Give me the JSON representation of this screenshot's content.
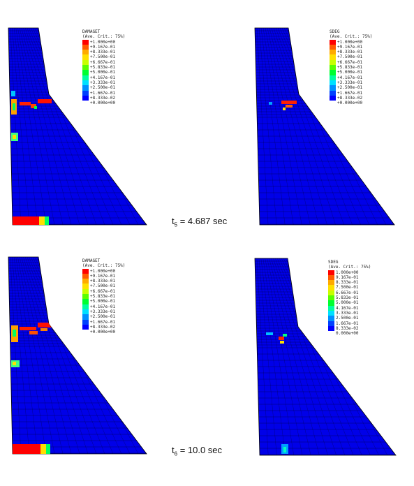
{
  "palette": [
    "#ff0000",
    "#ff5a00",
    "#ffaa00",
    "#ffe000",
    "#c8ff00",
    "#5aff00",
    "#00ff30",
    "#00ffa0",
    "#00e0ff",
    "#0090ff",
    "#0040ff",
    "#0000ff"
  ],
  "mesh_fill": "#0000e8",
  "panels": [
    {
      "var": "DAMAGET",
      "sub": "(Ave. Crit.: 75%)",
      "values": [
        "+1.000e+00",
        "+9.167e-01",
        "+8.333e-01",
        "+7.500e-01",
        "+6.667e-01",
        "+5.833e-01",
        "+5.000e-01",
        "+4.167e-01",
        "+3.333e-01",
        "+2.500e-01",
        "+1.667e-01",
        "+8.333e-02",
        "+0.000e+00"
      ]
    },
    {
      "var": "SDEG",
      "sub": "(Ave. Crit.: 75%)",
      "values": [
        "+1.000e+00",
        "+9.167e-01",
        "+8.333e-01",
        "+7.500e-01",
        "+6.667e-01",
        "+5.833e-01",
        "+5.000e-01",
        "+4.167e-01",
        "+3.333e-01",
        "+2.500e-01",
        "+1.667e-01",
        "+8.333e-02",
        "+0.000e+00"
      ]
    },
    {
      "var": "DAMAGET",
      "sub": "(Ave. Crit.: 75%)",
      "values": [
        "+1.000e+00",
        "+9.167e-01",
        "+8.333e-01",
        "+7.500e-01",
        "+6.667e-01",
        "+5.833e-01",
        "+5.000e-01",
        "+4.167e-01",
        "+3.333e-01",
        "+2.500e-01",
        "+1.667e-01",
        "+8.333e-02",
        "+0.000e+00"
      ]
    },
    {
      "var": "SDEG",
      "sub": "(Ave. Crit.: 75%)",
      "values": [
        "1.000e+00",
        "9.167e-01",
        "8.333e-01",
        "7.500e-01",
        "6.667e-01",
        "5.833e-01",
        "5.000e-01",
        "4.167e-01",
        "3.333e-01",
        "2.500e-01",
        "1.667e-01",
        "8.333e-02",
        "0.000e+00"
      ]
    }
  ],
  "time_labels": [
    {
      "sym": "t",
      "sub": "5",
      "text": " = 4.687 sec"
    },
    {
      "sym": "t",
      "sub": "6",
      "text": " = 10.0 sec"
    }
  ]
}
